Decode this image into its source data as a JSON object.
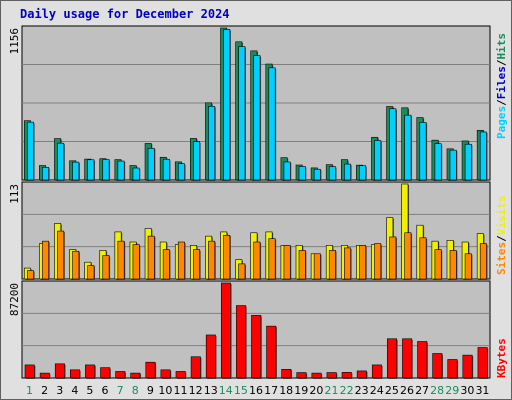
{
  "title": "Daily usage for December 2024",
  "colors": {
    "hits": "#1a8c5c",
    "files": "#00d0ff",
    "pages": "#00d0ff",
    "visits": "#f0f000",
    "sites": "#ff8800",
    "kbytes": "#ff0000",
    "weekend_day": "#1a8c5c",
    "weekday": "#000000",
    "panel_bg": "#c0c0c0"
  },
  "chart_data": [
    {
      "type": "bar",
      "title": "",
      "ymax_label": "1156",
      "ylim": [
        0,
        1156
      ],
      "legend": [
        {
          "text": "Pages",
          "color": "#00d0ff"
        },
        {
          "text": "Files",
          "color": "#0000c0"
        },
        {
          "text": "Hits",
          "color": "#1a8c5c"
        }
      ],
      "categories": [
        "1",
        "2",
        "3",
        "4",
        "5",
        "6",
        "7",
        "8",
        "9",
        "10",
        "11",
        "12",
        "13",
        "14",
        "15",
        "16",
        "17",
        "18",
        "19",
        "20",
        "21",
        "22",
        "23",
        "24",
        "25",
        "26",
        "27",
        "28",
        "29",
        "30",
        "31"
      ],
      "series": [
        {
          "name": "Hits",
          "values": [
            451,
            110,
            315,
            146,
            159,
            162,
            155,
            110,
            278,
            173,
            138,
            316,
            587,
            1156,
            1051,
            982,
            882,
            170,
            114,
            92,
            117,
            155,
            113,
            325,
            559,
            549,
            475,
            303,
            237,
            297,
            378
          ]
        },
        {
          "name": "Files",
          "values": [
            440,
            96,
            280,
            136,
            154,
            156,
            144,
            91,
            241,
            158,
            124,
            291,
            560,
            1145,
            1015,
            946,
            853,
            137,
            103,
            82,
            102,
            121,
            109,
            300,
            542,
            493,
            438,
            276,
            227,
            272,
            365
          ]
        }
      ]
    },
    {
      "type": "bar",
      "title": "",
      "ymax_label": "113",
      "ylim": [
        0,
        113
      ],
      "legend": [
        {
          "text": "Sites",
          "color": "#ff8800"
        },
        {
          "text": "Visits",
          "color": "#f0f000"
        }
      ],
      "categories": [
        "1",
        "2",
        "3",
        "4",
        "5",
        "6",
        "7",
        "8",
        "9",
        "10",
        "11",
        "12",
        "13",
        "14",
        "15",
        "16",
        "17",
        "18",
        "19",
        "20",
        "21",
        "22",
        "23",
        "24",
        "25",
        "26",
        "27",
        "28",
        "29",
        "30",
        "31"
      ],
      "series": [
        {
          "name": "Visits",
          "values": [
            13,
            42,
            66,
            35,
            20,
            34,
            56,
            44,
            60,
            44,
            41,
            40,
            51,
            56,
            23,
            55,
            56,
            40,
            40,
            30,
            40,
            40,
            40,
            41,
            73,
            113,
            64,
            45,
            46,
            44,
            54
          ]
        },
        {
          "name": "Sites",
          "values": [
            10,
            45,
            57,
            33,
            16,
            28,
            45,
            41,
            51,
            35,
            44,
            35,
            45,
            52,
            18,
            44,
            48,
            40,
            34,
            30,
            34,
            37,
            40,
            42,
            50,
            55,
            49,
            35,
            34,
            30,
            42
          ]
        }
      ]
    },
    {
      "type": "bar",
      "title": "",
      "ymax_label": "87200",
      "ylim": [
        0,
        87200
      ],
      "legend": [
        {
          "text": "KBytes",
          "color": "#ff0000"
        }
      ],
      "categories": [
        "1",
        "2",
        "3",
        "4",
        "5",
        "6",
        "7",
        "8",
        "9",
        "10",
        "11",
        "12",
        "13",
        "14",
        "15",
        "16",
        "17",
        "18",
        "19",
        "20",
        "21",
        "22",
        "23",
        "24",
        "25",
        "26",
        "27",
        "28",
        "29",
        "30",
        "31"
      ],
      "series": [
        {
          "name": "KBytes",
          "values": [
            12000,
            4500,
            13000,
            7500,
            12000,
            9500,
            6000,
            4500,
            14500,
            7500,
            6000,
            19500,
            39500,
            87200,
            66500,
            57500,
            47600,
            8000,
            5000,
            4500,
            5000,
            5200,
            6500,
            12000,
            36000,
            36000,
            33500,
            22500,
            17000,
            21000,
            28000
          ]
        }
      ]
    }
  ],
  "weekend_days": [
    "1",
    "7",
    "8",
    "14",
    "15",
    "21",
    "22",
    "28",
    "29"
  ]
}
